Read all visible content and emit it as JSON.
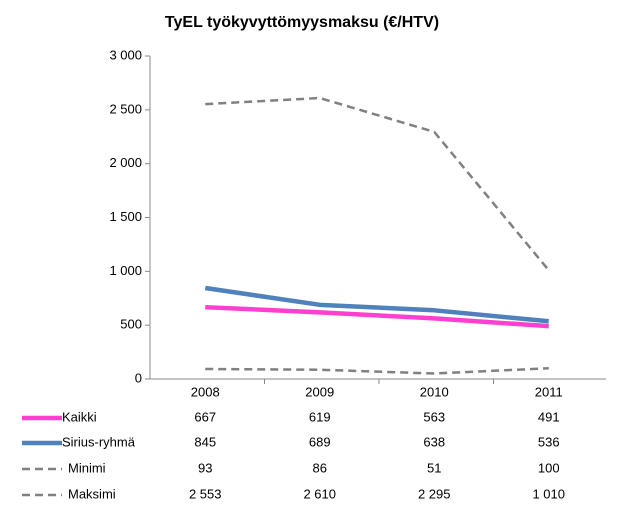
{
  "chart_data": {
    "type": "line",
    "title": "TyEL työkyvyttömyysmaksu  (€/HTV)",
    "categories": [
      "2008",
      "2009",
      "2010",
      "2011"
    ],
    "series": [
      {
        "name": "Kaikki",
        "color": "#ff3fcf",
        "line_style": "solid",
        "values": [
          667,
          619,
          563,
          491
        ]
      },
      {
        "name": "Sirius-ryhmä",
        "color": "#4f81bd",
        "line_style": "solid",
        "values": [
          845,
          689,
          638,
          536
        ]
      },
      {
        "name": "Minimi",
        "color": "#808080",
        "line_style": "dashed",
        "values": [
          93,
          86,
          51,
          100
        ]
      },
      {
        "name": "Maksimi",
        "color": "#808080",
        "line_style": "dashed",
        "values": [
          2553,
          2610,
          2295,
          1010
        ],
        "value_labels": [
          "2 553",
          "2 610",
          "2 295",
          "1 010"
        ]
      }
    ],
    "ylim": [
      0,
      3000
    ],
    "yticks": [
      0,
      500,
      {
        "value": 1000,
        "label": "1 000"
      },
      {
        "value": 1500,
        "label": "1 500"
      },
      {
        "value": 2000,
        "label": "2 000"
      },
      {
        "value": 2500,
        "label": "2 500"
      },
      {
        "value": 3000,
        "label": "3 000"
      }
    ],
    "grid": false
  }
}
